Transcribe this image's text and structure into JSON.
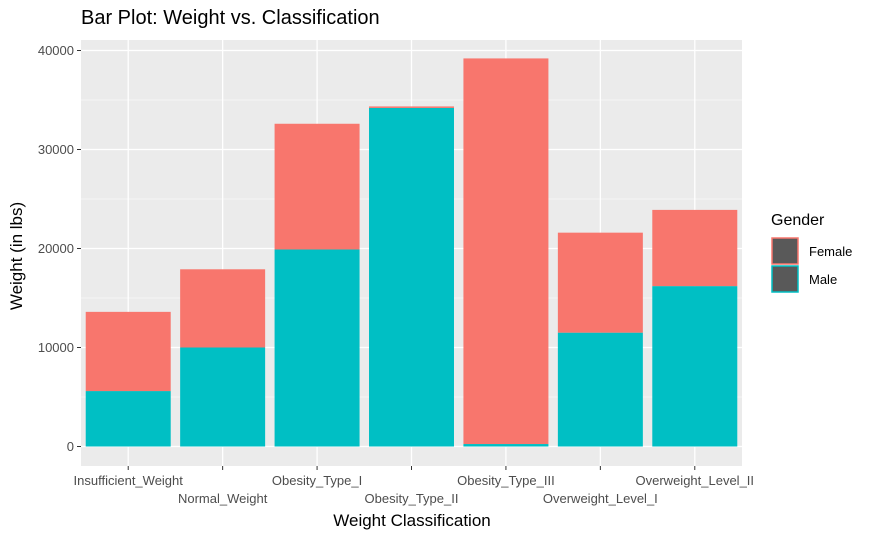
{
  "chart_data": {
    "type": "bar",
    "stacked": true,
    "title": "Bar Plot: Weight vs. Classification",
    "xlabel": "Weight Classification",
    "ylabel": "Weight (in lbs)",
    "categories": [
      "Insufficient_Weight",
      "Normal_Weight",
      "Obesity_Type_I",
      "Obesity_Type_II",
      "Obesity_Type_III",
      "Overweight_Level_I",
      "Overweight_Level_II"
    ],
    "series": [
      {
        "name": "Male",
        "color": "#00BFC4",
        "values": [
          5600,
          10000,
          19900,
          34200,
          250,
          11500,
          16200
        ]
      },
      {
        "name": "Female",
        "color": "#F8766D",
        "values": [
          8000,
          7900,
          12700,
          150,
          38950,
          10100,
          7700
        ]
      }
    ],
    "ylim": [
      0,
      40000
    ],
    "yticks": [
      0,
      10000,
      20000,
      30000,
      40000
    ],
    "grid": true,
    "legend": {
      "title": "Gender",
      "position": "right",
      "entries": [
        {
          "label": "Female",
          "color": "#F8766D"
        },
        {
          "label": "Male",
          "color": "#00BFC4"
        }
      ]
    }
  }
}
